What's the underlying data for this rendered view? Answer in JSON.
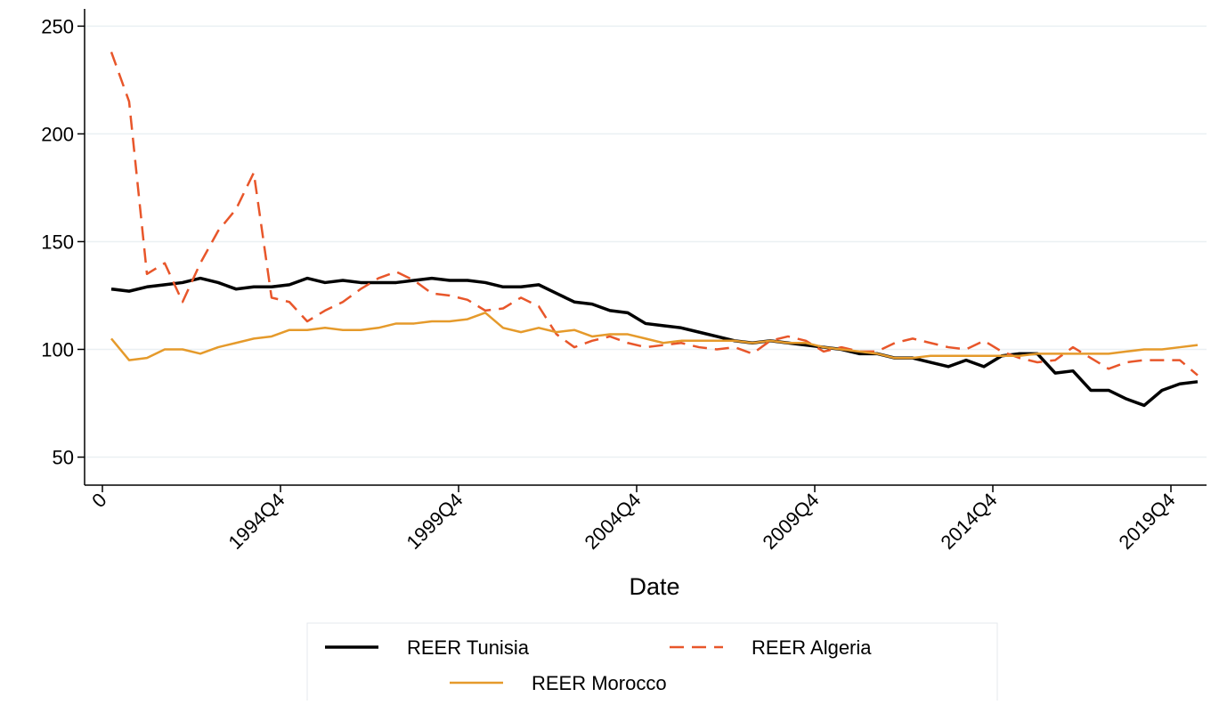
{
  "chart_data": {
    "type": "line",
    "x_label": "Date",
    "x": [
      120,
      122,
      124,
      126,
      128,
      130,
      132,
      134,
      136,
      138,
      140,
      142,
      144,
      146,
      148,
      150,
      152,
      154,
      156,
      158,
      160,
      162,
      164,
      166,
      168,
      170,
      172,
      174,
      176,
      178,
      180,
      182,
      184,
      186,
      188,
      190,
      192,
      194,
      196,
      198,
      200,
      202,
      204,
      206,
      208,
      210,
      212,
      214,
      216,
      218,
      220,
      222,
      224,
      226,
      228,
      230,
      232,
      234,
      236,
      238,
      240,
      242
    ],
    "xlim": [
      117,
      243
    ],
    "xticks": [
      {
        "value": 119,
        "label": "0"
      },
      {
        "value": 139,
        "label": "1994Q4"
      },
      {
        "value": 159,
        "label": "1999Q4"
      },
      {
        "value": 179,
        "label": "2004Q4"
      },
      {
        "value": 199,
        "label": "2009Q4"
      },
      {
        "value": 219,
        "label": "2014Q4"
      },
      {
        "value": 239,
        "label": "2019Q4"
      }
    ],
    "ylim": [
      37,
      258
    ],
    "yticks": [
      50,
      100,
      150,
      200,
      250
    ],
    "grid": true,
    "series": [
      {
        "name": "REER Tunisia",
        "color": "#000000",
        "dash": "solid",
        "values": [
          128,
          127,
          129,
          130,
          131,
          133,
          131,
          128,
          129,
          129,
          130,
          133,
          131,
          132,
          131,
          131,
          131,
          132,
          133,
          132,
          132,
          131,
          129,
          129,
          130,
          126,
          122,
          121,
          118,
          117,
          112,
          111,
          110,
          108,
          106,
          104,
          103,
          104,
          103,
          102,
          101,
          100,
          98,
          98,
          96,
          96,
          94,
          92,
          95,
          92,
          97,
          98,
          98,
          89,
          90,
          81,
          81,
          77,
          74,
          81,
          84,
          85
        ]
      },
      {
        "name": "REER Algeria",
        "color": "#e8562a",
        "dash": "dashed",
        "values": [
          238,
          215,
          135,
          140,
          122,
          140,
          155,
          165,
          182,
          124,
          122,
          113,
          118,
          122,
          128,
          133,
          136,
          132,
          126,
          125,
          123,
          118,
          119,
          124,
          120,
          107,
          101,
          104,
          106,
          103,
          101,
          102,
          103,
          101,
          100,
          101,
          98,
          104,
          106,
          104,
          99,
          101,
          99,
          99,
          103,
          105,
          103,
          101,
          100,
          104,
          99,
          96,
          94,
          95,
          101,
          96,
          91,
          94,
          95,
          95,
          95,
          88
        ]
      },
      {
        "name": "REER Morocco",
        "color": "#e59a2b",
        "dash": "solid",
        "values": [
          105,
          95,
          96,
          100,
          100,
          98,
          101,
          103,
          105,
          106,
          109,
          109,
          110,
          109,
          109,
          110,
          112,
          112,
          113,
          113,
          114,
          117,
          110,
          108,
          110,
          108,
          109,
          106,
          107,
          107,
          105,
          103,
          104,
          104,
          104,
          104,
          103,
          104,
          103,
          103,
          101,
          100,
          99,
          98,
          96,
          96,
          97,
          97,
          97,
          97,
          97,
          97,
          98,
          98,
          98,
          98,
          98,
          99,
          100,
          100,
          101,
          102
        ]
      }
    ]
  }
}
